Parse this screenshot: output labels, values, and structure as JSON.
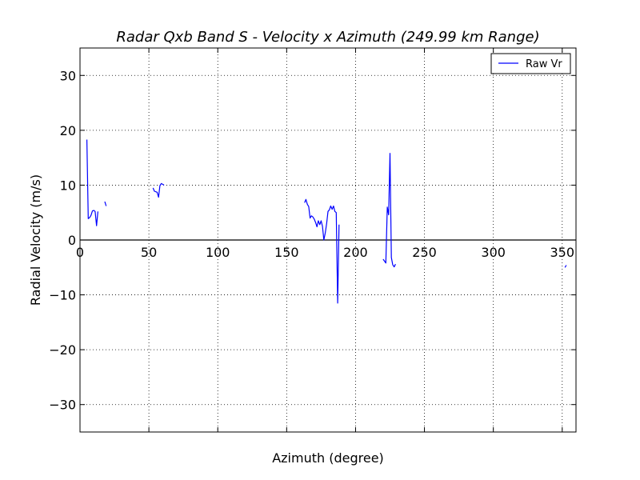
{
  "chart_data": {
    "type": "line",
    "title": "Radar Qxb Band S - Velocity x Azimuth (249.99 km Range)",
    "xlabel": "Azimuth (degree)",
    "ylabel": "Radial Velocity (m/s)",
    "xlim": [
      0,
      360
    ],
    "ylim": [
      -35,
      35
    ],
    "x_ticks": [
      0,
      50,
      100,
      150,
      200,
      250,
      300,
      350
    ],
    "y_ticks": [
      30,
      20,
      10,
      0,
      -10,
      -20,
      -30
    ],
    "x_tick_labels": [
      "0",
      "50",
      "100",
      "150",
      "200",
      "250",
      "300",
      "350"
    ],
    "y_tick_labels": [
      "30",
      "20",
      "10",
      "0",
      "−10",
      "−20",
      "−30"
    ],
    "grid": true,
    "zero_line": true,
    "legend": {
      "position": "top-right",
      "entries": [
        "Raw Vr"
      ]
    },
    "series": [
      {
        "name": "Raw Vr",
        "color": "#0000ff",
        "segments": [
          [
            [
              5,
              18.3
            ],
            [
              6,
              3.9
            ],
            [
              7,
              4.1
            ],
            [
              8,
              4.5
            ],
            [
              9,
              5.3
            ],
            [
              10,
              5.4
            ],
            [
              11,
              5.2
            ],
            [
              12,
              2.6
            ],
            [
              13,
              5.2
            ]
          ],
          [
            [
              18,
              7
            ],
            [
              19,
              6.2
            ]
          ],
          [
            [
              53,
              9.5
            ],
            [
              54,
              8.9
            ],
            [
              56,
              8.7
            ],
            [
              57,
              7.8
            ],
            [
              58,
              9.9
            ],
            [
              59,
              10.3
            ],
            [
              61,
              10
            ]
          ],
          [
            [
              163,
              6.8
            ],
            [
              164,
              7.4
            ],
            [
              165,
              6.5
            ],
            [
              166,
              6.1
            ],
            [
              167,
              4
            ],
            [
              168,
              4.4
            ],
            [
              169,
              4.2
            ],
            [
              170,
              3.8
            ],
            [
              171,
              3.2
            ],
            [
              172,
              2.4
            ],
            [
              173,
              3.5
            ],
            [
              174,
              2.8
            ],
            [
              175,
              3.5
            ],
            [
              176,
              2.5
            ],
            [
              177,
              0
            ],
            [
              178,
              1.3
            ],
            [
              179,
              3
            ],
            [
              180,
              5.2
            ],
            [
              181,
              5.5
            ],
            [
              182,
              6.2
            ],
            [
              183,
              5.6
            ],
            [
              184,
              6.2
            ],
            [
              185,
              5.2
            ],
            [
              186,
              5
            ],
            [
              187,
              -11.5
            ],
            [
              188,
              2.8
            ]
          ],
          [
            [
              220,
              -3.5
            ],
            [
              222,
              -4.2
            ],
            [
              223,
              6
            ],
            [
              224,
              4.6
            ],
            [
              225,
              15.8
            ],
            [
              226,
              -3.2
            ],
            [
              227,
              -4.5
            ],
            [
              228,
              -4.9
            ],
            [
              229,
              -4.4
            ]
          ],
          [
            [
              352,
              -5
            ],
            [
              353,
              -4.6
            ]
          ]
        ]
      }
    ]
  }
}
